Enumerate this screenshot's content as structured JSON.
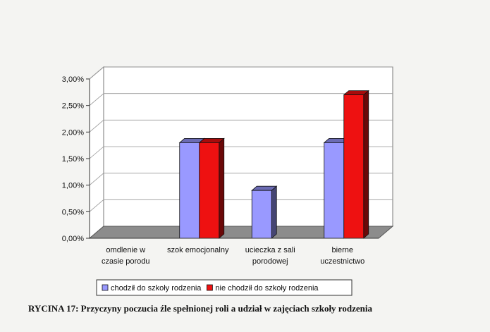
{
  "caption": "RYCINA 17: Przyczyny poczucia źle spełnionej roli a udział w zajęciach szkoły rodzenia",
  "chart_data": {
    "type": "bar",
    "title": "",
    "xlabel": "",
    "ylabel": "",
    "ylim": [
      0,
      3.0
    ],
    "yticks": [
      "0,00%",
      "0,50%",
      "1,00%",
      "1,50%",
      "2,00%",
      "2,50%",
      "3,00%"
    ],
    "grid": true,
    "legend_position": "bottom",
    "categories": [
      [
        "omdlenie w",
        "czasie porodu"
      ],
      [
        "szok emocjonalny"
      ],
      [
        "ucieczka z sali",
        "porodowej"
      ],
      [
        "bierne",
        "uczestnictwo"
      ]
    ],
    "series": [
      {
        "name": "chodził do szkoły rodzenia",
        "color": "#9999ff",
        "values": [
          0,
          1.8,
          0.9,
          1.8
        ]
      },
      {
        "name": "nie chodził do szkoły rodzenia",
        "color": "#ee1111",
        "values": [
          0,
          1.8,
          0,
          2.7
        ]
      }
    ]
  }
}
